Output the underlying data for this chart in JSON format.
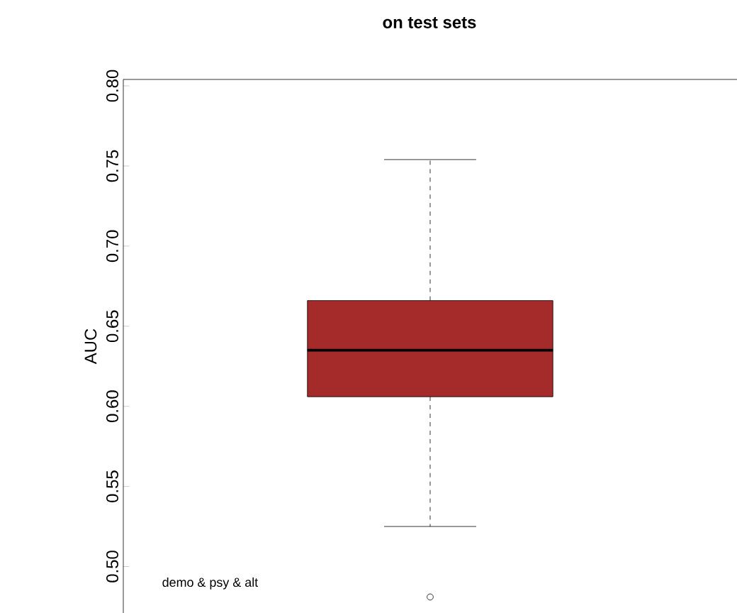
{
  "chart_data": {
    "type": "box",
    "title": "on test sets",
    "ylabel": "AUC",
    "categories": [
      null
    ],
    "boxes": [
      {
        "low": 0.525,
        "q1": 0.606,
        "median": 0.635,
        "q3": 0.666,
        "high": 0.754,
        "outliers": [
          0.481
        ]
      }
    ],
    "color": "#a52a2a",
    "ylim": [
      0.471,
      0.804
    ],
    "yticks": [
      {
        "value": 0.5,
        "label": "0.50"
      },
      {
        "value": 0.55,
        "label": "0.55"
      },
      {
        "value": 0.6,
        "label": "0.60"
      },
      {
        "value": 0.65,
        "label": "0.65"
      },
      {
        "value": 0.7,
        "label": "0.70"
      },
      {
        "value": 0.75,
        "label": "0.75"
      },
      {
        "value": 0.8,
        "label": "0.80"
      }
    ],
    "annotations": [
      "demo & psy & alt"
    ]
  }
}
